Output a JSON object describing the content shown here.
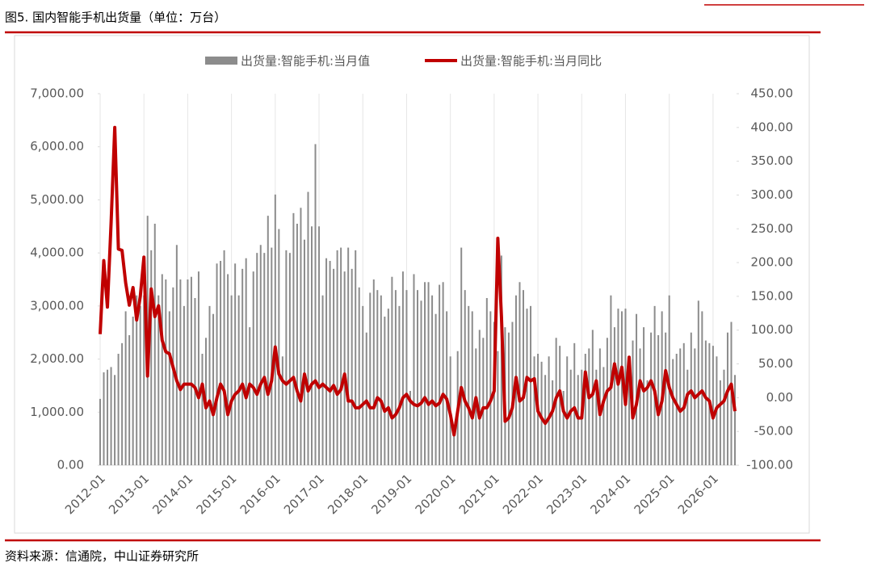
{
  "chart_data": {
    "type": "combo",
    "title": "图5. 国内智能手机出货量（单位：万台）",
    "source": "资料来源：信通院，中山证券研究所",
    "categories": [
      "2012-01",
      null,
      null,
      null,
      null,
      null,
      null,
      null,
      null,
      null,
      null,
      null,
      "2013-01",
      null,
      null,
      null,
      null,
      null,
      null,
      null,
      null,
      null,
      null,
      null,
      "2014-01",
      null,
      null,
      null,
      null,
      null,
      null,
      null,
      null,
      null,
      null,
      null,
      "2015-01",
      null,
      null,
      null,
      null,
      null,
      null,
      null,
      null,
      null,
      null,
      null,
      "2016-01",
      null,
      null,
      null,
      null,
      null,
      null,
      null,
      null,
      null,
      null,
      null,
      "2017-01",
      null,
      null,
      null,
      null,
      null,
      null,
      null,
      null,
      null,
      null,
      null,
      "2018-01",
      null,
      null,
      null,
      null,
      null,
      null,
      null,
      null,
      null,
      null,
      null,
      "2019-01",
      null,
      null,
      null,
      null,
      null,
      null,
      null,
      null,
      null,
      null,
      null,
      "2020-01",
      null,
      null,
      null,
      null,
      null,
      null,
      null,
      null,
      null,
      null,
      null,
      "2021-01",
      null,
      null,
      null,
      null,
      null,
      null,
      null,
      null,
      null,
      null,
      null,
      "2022-01",
      null,
      null,
      null,
      null,
      null,
      null,
      null,
      null,
      null,
      null,
      null,
      "2023-01",
      null,
      null,
      null,
      null,
      null,
      null,
      null,
      null,
      null,
      null,
      null,
      "2024-01",
      null,
      null,
      null,
      null,
      null,
      null,
      null,
      null,
      null,
      null,
      null,
      "2025-01",
      null,
      null,
      null,
      null,
      null,
      null,
      null,
      null,
      null,
      null,
      null,
      "2026-01",
      null,
      null,
      null,
      null,
      null,
      null
    ],
    "series": [
      {
        "name": "出货量:智能手机:当月值",
        "type": "bar",
        "axis": "y",
        "color": "#8c8c8c",
        "values": [
          1250,
          1750,
          1800,
          1850,
          1700,
          2100,
          2300,
          2900,
          2450,
          2800,
          3200,
          3000,
          3200,
          4700,
          4050,
          4550,
          3200,
          3600,
          3500,
          2900,
          3350,
          4150,
          3500,
          3000,
          3500,
          3550,
          3150,
          3650,
          2100,
          2400,
          3000,
          2850,
          3800,
          3850,
          4050,
          3600,
          3200,
          3800,
          3200,
          3700,
          3900,
          2600,
          3650,
          4000,
          4150,
          4000,
          4700,
          4100,
          5100,
          4450,
          2050,
          4050,
          4000,
          4750,
          4550,
          4850,
          4250,
          5150,
          4500,
          6050,
          4500,
          3200,
          3900,
          3850,
          3700,
          4050,
          4100,
          3650,
          4100,
          3700,
          4050,
          3350,
          3000,
          2500,
          3250,
          3500,
          3300,
          3200,
          2800,
          2950,
          3550,
          3300,
          3000,
          3650,
          3300,
          1400,
          3600,
          3300,
          3100,
          3450,
          3450,
          3200,
          2850,
          3400,
          3450,
          2900,
          2050,
          640,
          2150,
          4100,
          3300,
          3000,
          2900,
          2200,
          2550,
          2400,
          3150,
          2900,
          2700,
          2150,
          3950,
          2600,
          2500,
          2700,
          3200,
          3450,
          3300,
          2950,
          3000,
          2050,
          2100,
          1950,
          1700,
          2050,
          1600,
          2400,
          2250,
          1400,
          2050,
          1800,
          2300,
          1700,
          1800,
          2100,
          2200,
          2550,
          1800,
          2200,
          1850,
          2400,
          3200,
          2600,
          2950,
          2900,
          2950,
          1700,
          2350,
          2850,
          2200,
          2600,
          1600,
          2500,
          3000,
          2450,
          2900,
          2500,
          3200,
          2000,
          2100,
          2200,
          2300,
          1800,
          2500,
          2200,
          3100,
          2900,
          2350,
          2300,
          2250,
          2050,
          1600,
          1800,
          2500,
          2700,
          1700
        ]
      },
      {
        "name": "出货量:智能手机:当月同比",
        "type": "line",
        "axis": "y2",
        "color": "#c00000",
        "values": [
          94,
          203,
          134,
          260,
          400,
          220,
          218,
          170,
          137,
          163,
          115,
          150,
          208,
          32,
          161,
          120,
          136,
          85,
          68,
          65,
          45,
          25,
          12,
          20,
          20,
          20,
          15,
          0,
          20,
          -15,
          -5,
          -25,
          0,
          20,
          10,
          -25,
          -5,
          5,
          10,
          20,
          0,
          20,
          15,
          5,
          20,
          30,
          5,
          25,
          75,
          35,
          25,
          20,
          25,
          30,
          10,
          -5,
          35,
          10,
          20,
          25,
          15,
          20,
          15,
          10,
          18,
          5,
          12,
          35,
          -5,
          -5,
          -15,
          -15,
          -10,
          -5,
          -15,
          -15,
          0,
          -5,
          -20,
          -15,
          -30,
          -25,
          -15,
          0,
          5,
          -5,
          -10,
          -12,
          -8,
          0,
          -10,
          -5,
          -12,
          -8,
          5,
          -2,
          -25,
          -55,
          -20,
          15,
          -5,
          -15,
          -30,
          0,
          -30,
          -15,
          -15,
          -5,
          10,
          236,
          120,
          -35,
          -30,
          -15,
          30,
          -5,
          0,
          30,
          25,
          28,
          -20,
          -30,
          -38,
          -30,
          -20,
          0,
          10,
          -20,
          -30,
          -20,
          -15,
          -30,
          -30,
          38,
          0,
          5,
          25,
          -25,
          -5,
          10,
          15,
          50,
          20,
          45,
          -10,
          60,
          -30,
          -10,
          25,
          10,
          15,
          25,
          10,
          -25,
          -5,
          40,
          15,
          0,
          -10,
          -20,
          -15,
          5,
          10,
          0,
          5,
          10,
          0,
          -5,
          -30,
          -15,
          -10,
          -5,
          10,
          20,
          -20
        ]
      }
    ],
    "ylim": [
      0,
      7000
    ],
    "yticks": [
      {
        "value": 0,
        "label": "0.00"
      },
      {
        "value": 1000,
        "label": "1,000.00"
      },
      {
        "value": 2000,
        "label": "2,000.00"
      },
      {
        "value": 3000,
        "label": "3,000.00"
      },
      {
        "value": 4000,
        "label": "4,000.00"
      },
      {
        "value": 5000,
        "label": "5,000.00"
      },
      {
        "value": 6000,
        "label": "6,000.00"
      },
      {
        "value": 7000,
        "label": "7,000.00"
      }
    ],
    "y2lim": [
      -100,
      450
    ],
    "y2ticks": [
      {
        "value": -100,
        "label": "-100.00"
      },
      {
        "value": -50,
        "label": "-50.00"
      },
      {
        "value": 0,
        "label": "0.00"
      },
      {
        "value": 50,
        "label": "50.00"
      },
      {
        "value": 100,
        "label": "100.00"
      },
      {
        "value": 150,
        "label": "150.00"
      },
      {
        "value": 200,
        "label": "200.00"
      },
      {
        "value": 250,
        "label": "250.00"
      },
      {
        "value": 300,
        "label": "300.00"
      },
      {
        "value": 350,
        "label": "350.00"
      },
      {
        "value": 400,
        "label": "400.00"
      },
      {
        "value": 450,
        "label": "450.00"
      }
    ],
    "legend": "top"
  }
}
